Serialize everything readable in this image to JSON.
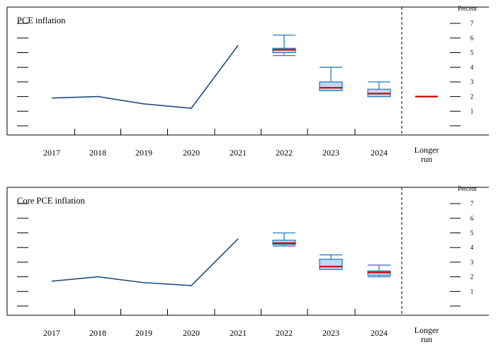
{
  "chart_data": [
    {
      "type": "line",
      "title": "PCE inflation",
      "unit_label": "Percent",
      "categories": [
        "2017",
        "2018",
        "2019",
        "2020",
        "2021",
        "2022",
        "2023",
        "2024",
        "Longer run"
      ],
      "longer_run_label": [
        "Longer",
        "run"
      ],
      "ylim": [
        0,
        8
      ],
      "yticks": [
        "1",
        "2",
        "3",
        "4",
        "5",
        "6",
        "7"
      ],
      "grid": false,
      "legend": "none",
      "actual": {
        "x": [
          "2017",
          "2018",
          "2019",
          "2020",
          "2021"
        ],
        "values": [
          1.9,
          2.0,
          1.5,
          1.2,
          5.5
        ]
      },
      "projections": [
        {
          "category": "2022",
          "low": 4.8,
          "q1": 5.0,
          "median": 5.2,
          "q3": 5.3,
          "high": 6.2
        },
        {
          "category": "2023",
          "low": 2.4,
          "q1": 2.4,
          "median": 2.6,
          "q3": 3.0,
          "high": 4.0
        },
        {
          "category": "2024",
          "low": 2.0,
          "q1": 2.0,
          "median": 2.2,
          "q3": 2.5,
          "high": 3.0
        },
        {
          "category": "Longer run",
          "median": 2.0
        }
      ],
      "colors": {
        "line": "#1f4e79",
        "box_fill": "#bcd9f2",
        "box_edge": "#2b7fbf",
        "median": "#cc0000"
      }
    },
    {
      "type": "line",
      "title": "Core PCE inflation",
      "unit_label": "Percent",
      "categories": [
        "2017",
        "2018",
        "2019",
        "2020",
        "2021",
        "2022",
        "2023",
        "2024",
        "Longer run"
      ],
      "longer_run_label": [
        "Longer",
        "run"
      ],
      "ylim": [
        0,
        8
      ],
      "yticks": [
        "1",
        "2",
        "3",
        "4",
        "5",
        "6",
        "7"
      ],
      "grid": false,
      "legend": "none",
      "actual": {
        "x": [
          "2017",
          "2018",
          "2019",
          "2020",
          "2021"
        ],
        "values": [
          1.7,
          2.0,
          1.6,
          1.4,
          4.6
        ]
      },
      "projections": [
        {
          "category": "2022",
          "low": 4.1,
          "q1": 4.2,
          "median": 4.3,
          "q3": 4.5,
          "high": 5.0
        },
        {
          "category": "2023",
          "low": 2.5,
          "q1": 2.5,
          "median": 2.7,
          "q3": 3.2,
          "high": 3.5
        },
        {
          "category": "2024",
          "low": 2.0,
          "q1": 2.1,
          "median": 2.3,
          "q3": 2.4,
          "high": 2.8
        }
      ],
      "colors": {
        "line": "#1f4e79",
        "box_fill": "#bcd9f2",
        "box_edge": "#2b7fbf",
        "median": "#cc0000"
      }
    }
  ]
}
